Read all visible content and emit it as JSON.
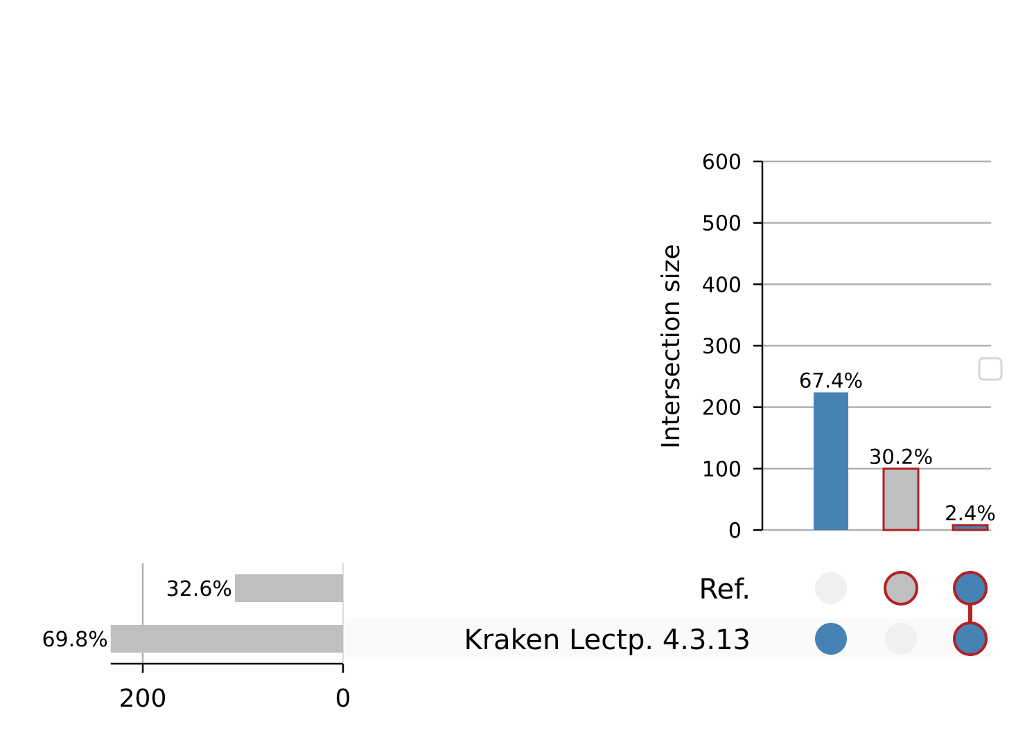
{
  "chart_data": {
    "type": "bar",
    "title": "",
    "intersections": {
      "ylabel": "Intersection size",
      "ylim": [
        0,
        600
      ],
      "yticks": [
        0,
        100,
        200,
        300,
        400,
        500,
        600
      ],
      "grid": true,
      "bars": [
        {
          "sets": [
            "Kraken Lectp. 4.3.13"
          ],
          "value": 224,
          "label": "67.4%",
          "color": "#4682b4",
          "edge": ""
        },
        {
          "sets": [
            "Ref."
          ],
          "value": 100,
          "label": "30.2%",
          "color": "#bfbfbf",
          "edge": "#b22222"
        },
        {
          "sets": [
            "Ref.",
            "Kraken Lectp. 4.3.13"
          ],
          "value": 8,
          "label": "2.4%",
          "color": "#4682b4",
          "edge": "#b22222"
        }
      ]
    },
    "sets": {
      "names": [
        "Ref.",
        "Kraken Lectp. 4.3.13"
      ],
      "sizes": [
        108,
        232
      ],
      "labels": [
        "32.6%",
        "69.8%"
      ],
      "xticks": [
        200,
        0
      ],
      "xlim": [
        0,
        232
      ],
      "color": "#bfbfbf"
    },
    "matrix": {
      "active_color": "#4682b4",
      "inactive_color": "#f0f0f0",
      "highlight_fill": "#bfbfbf",
      "highlight_edge": "#b22222"
    },
    "legend": {
      "placement": "right",
      "entries": []
    }
  }
}
